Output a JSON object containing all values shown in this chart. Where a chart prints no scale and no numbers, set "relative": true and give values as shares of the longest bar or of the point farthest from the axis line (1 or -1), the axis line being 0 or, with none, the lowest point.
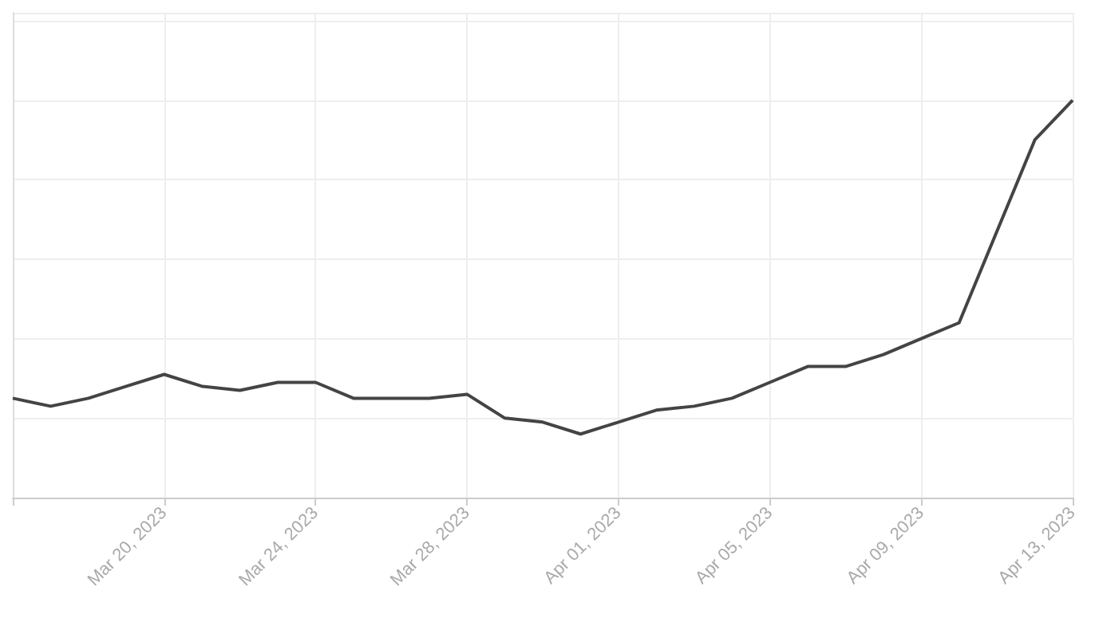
{
  "chart_data": {
    "type": "line",
    "relative": true,
    "grid": true,
    "marker": "none",
    "line_style": "solid",
    "categories": [
      null,
      null,
      null,
      null,
      "Mar 20, 2023",
      null,
      null,
      null,
      "Mar 24, 2023",
      null,
      null,
      null,
      "Mar 28, 2023",
      null,
      null,
      null,
      "Apr 01, 2023",
      null,
      null,
      null,
      "Apr 05, 2023",
      null,
      null,
      null,
      "Apr 09, 2023",
      null,
      null,
      null,
      "Apr 13, 2023"
    ],
    "series": [
      {
        "color": "#444444",
        "values": [
          0.25,
          0.23,
          0.25,
          0.28,
          0.31,
          0.28,
          0.27,
          0.29,
          0.29,
          0.25,
          0.25,
          0.25,
          0.26,
          0.2,
          0.19,
          0.16,
          0.19,
          0.22,
          0.23,
          0.25,
          0.29,
          0.33,
          0.33,
          0.36,
          0.4,
          0.44,
          0.67,
          0.9,
          1
        ]
      }
    ]
  }
}
